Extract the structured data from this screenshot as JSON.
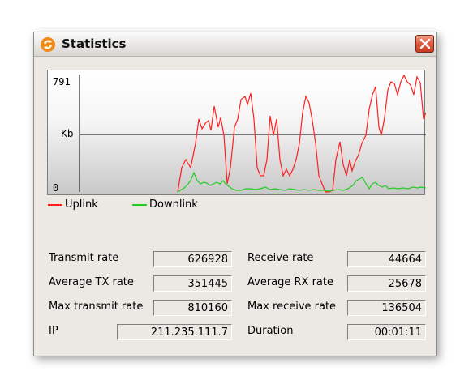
{
  "window": {
    "title": "Statistics"
  },
  "graph": {
    "y_max_label": "791",
    "y_mid_label": "Kb",
    "y_min_label": "0",
    "colors": {
      "uplink": "#ff2020",
      "downlink": "#22cc22"
    }
  },
  "legend": {
    "uplink": "Uplink",
    "downlink": "Downlink"
  },
  "stats": {
    "transmit_rate": {
      "label": "Transmit rate",
      "value": "626928"
    },
    "receive_rate": {
      "label": "Receive rate",
      "value": "44664"
    },
    "avg_tx_rate": {
      "label": "Average TX rate",
      "value": "351445"
    },
    "avg_rx_rate": {
      "label": "Average RX rate",
      "value": "25678"
    },
    "max_transmit_rate": {
      "label": "Max transmit rate",
      "value": "810160"
    },
    "max_receive_rate": {
      "label": "Max receive rate",
      "value": "136504"
    },
    "ip": {
      "label": "IP",
      "value": "211.235.111.7"
    },
    "duration": {
      "label": "Duration",
      "value": "00:01:11"
    }
  }
}
